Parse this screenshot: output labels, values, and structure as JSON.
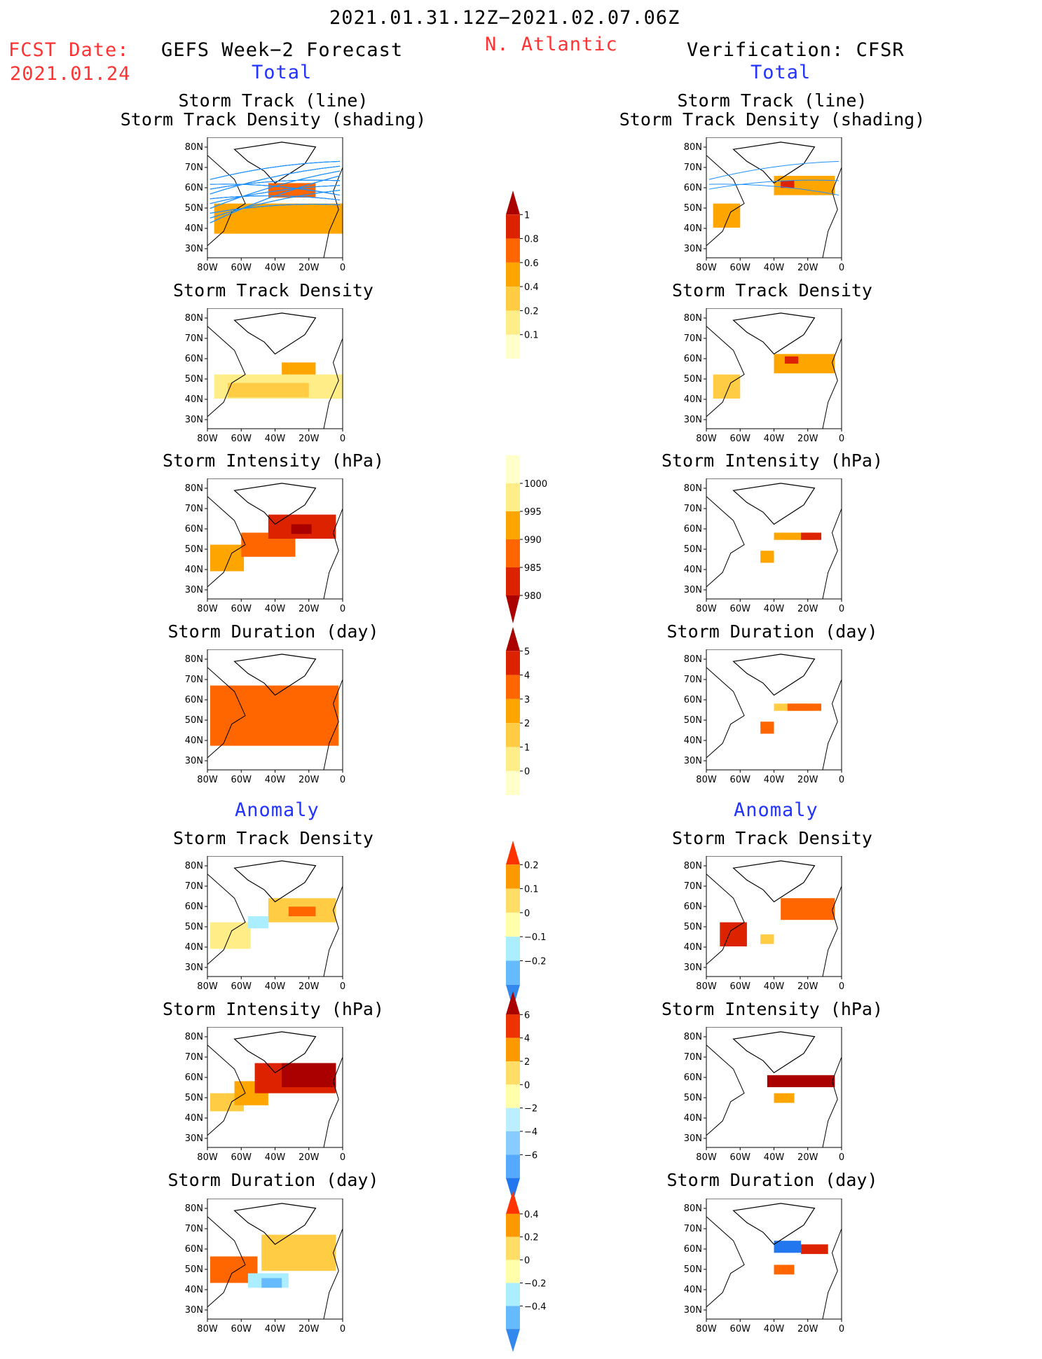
{
  "header": {
    "period": "2021.01.31.12Z−2021.02.07.06Z",
    "fcst_label": "FCST Date:",
    "fcst_date": "2021.01.24",
    "left_title": "GEFS Week−2 Forecast",
    "region": "N. Atlantic",
    "right_title": "Verification: CFSR",
    "left_sub": "Total",
    "right_sub": "Total",
    "left_anom": "Anomaly",
    "right_anom": "Anomaly"
  },
  "panel_titles": {
    "track_l1": "Storm Track (line)",
    "track_l2": "Storm Track Density (shading)",
    "density": "Storm Track Density",
    "intensity": "Storm Intensity (hPa)",
    "duration": "Storm Duration (day)"
  },
  "axes": {
    "lat_ticks": [
      "80N",
      "70N",
      "60N",
      "50N",
      "40N",
      "30N"
    ],
    "lon_ticks": [
      "80W",
      "60W",
      "40W",
      "20W",
      "0"
    ]
  },
  "colorbars": [
    {
      "id": "cb1",
      "labels": [
        "1",
        "0.8",
        "0.6",
        "0.4",
        "0.2",
        "0.1"
      ],
      "colors": [
        "#aa0000",
        "#dd2200",
        "#ff6600",
        "#ffa500",
        "#ffcc44",
        "#ffee88",
        "#ffffcc"
      ],
      "ends": "top"
    },
    {
      "id": "cb2",
      "labels": [
        "1000",
        "995",
        "990",
        "985",
        "980"
      ],
      "colors": [
        "#ffffcc",
        "#ffee88",
        "#ffa500",
        "#ff6600",
        "#dd2200",
        "#aa0000"
      ],
      "ends": "bottom"
    },
    {
      "id": "cb3",
      "labels": [
        "5",
        "4",
        "3",
        "2",
        "1",
        "0"
      ],
      "colors": [
        "#aa0000",
        "#dd2200",
        "#ff6600",
        "#ffa500",
        "#ffcc44",
        "#ffee88",
        "#ffffcc"
      ],
      "ends": "top"
    },
    {
      "id": "cb4",
      "labels": [
        "0.2",
        "0.1",
        "0",
        "−0.1",
        "−0.2"
      ],
      "colors": [
        "#ff3300",
        "#ff9900",
        "#ffdd66",
        "#ffffaa",
        "#aaeeff",
        "#66bbff",
        "#3388ee"
      ],
      "ends": "both"
    },
    {
      "id": "cb5",
      "labels": [
        "6",
        "4",
        "2",
        "0",
        "−2",
        "−4",
        "−6"
      ],
      "colors": [
        "#aa0000",
        "#ee3300",
        "#ff9900",
        "#ffdd66",
        "#ffffaa",
        "#bbeeff",
        "#88ccff",
        "#55aaff",
        "#2277ee"
      ],
      "ends": "both"
    },
    {
      "id": "cb6",
      "labels": [
        "0.4",
        "0.2",
        "0",
        "−0.2",
        "−0.4"
      ],
      "colors": [
        "#ff3300",
        "#ff9900",
        "#ffdd66",
        "#ffffaa",
        "#aaeeff",
        "#66bbff",
        "#3388ee"
      ],
      "ends": "both"
    }
  ],
  "colors": {
    "track_line": "#1e90ff",
    "red_text": "#ff3333",
    "blue_text": "#2233ff"
  }
}
